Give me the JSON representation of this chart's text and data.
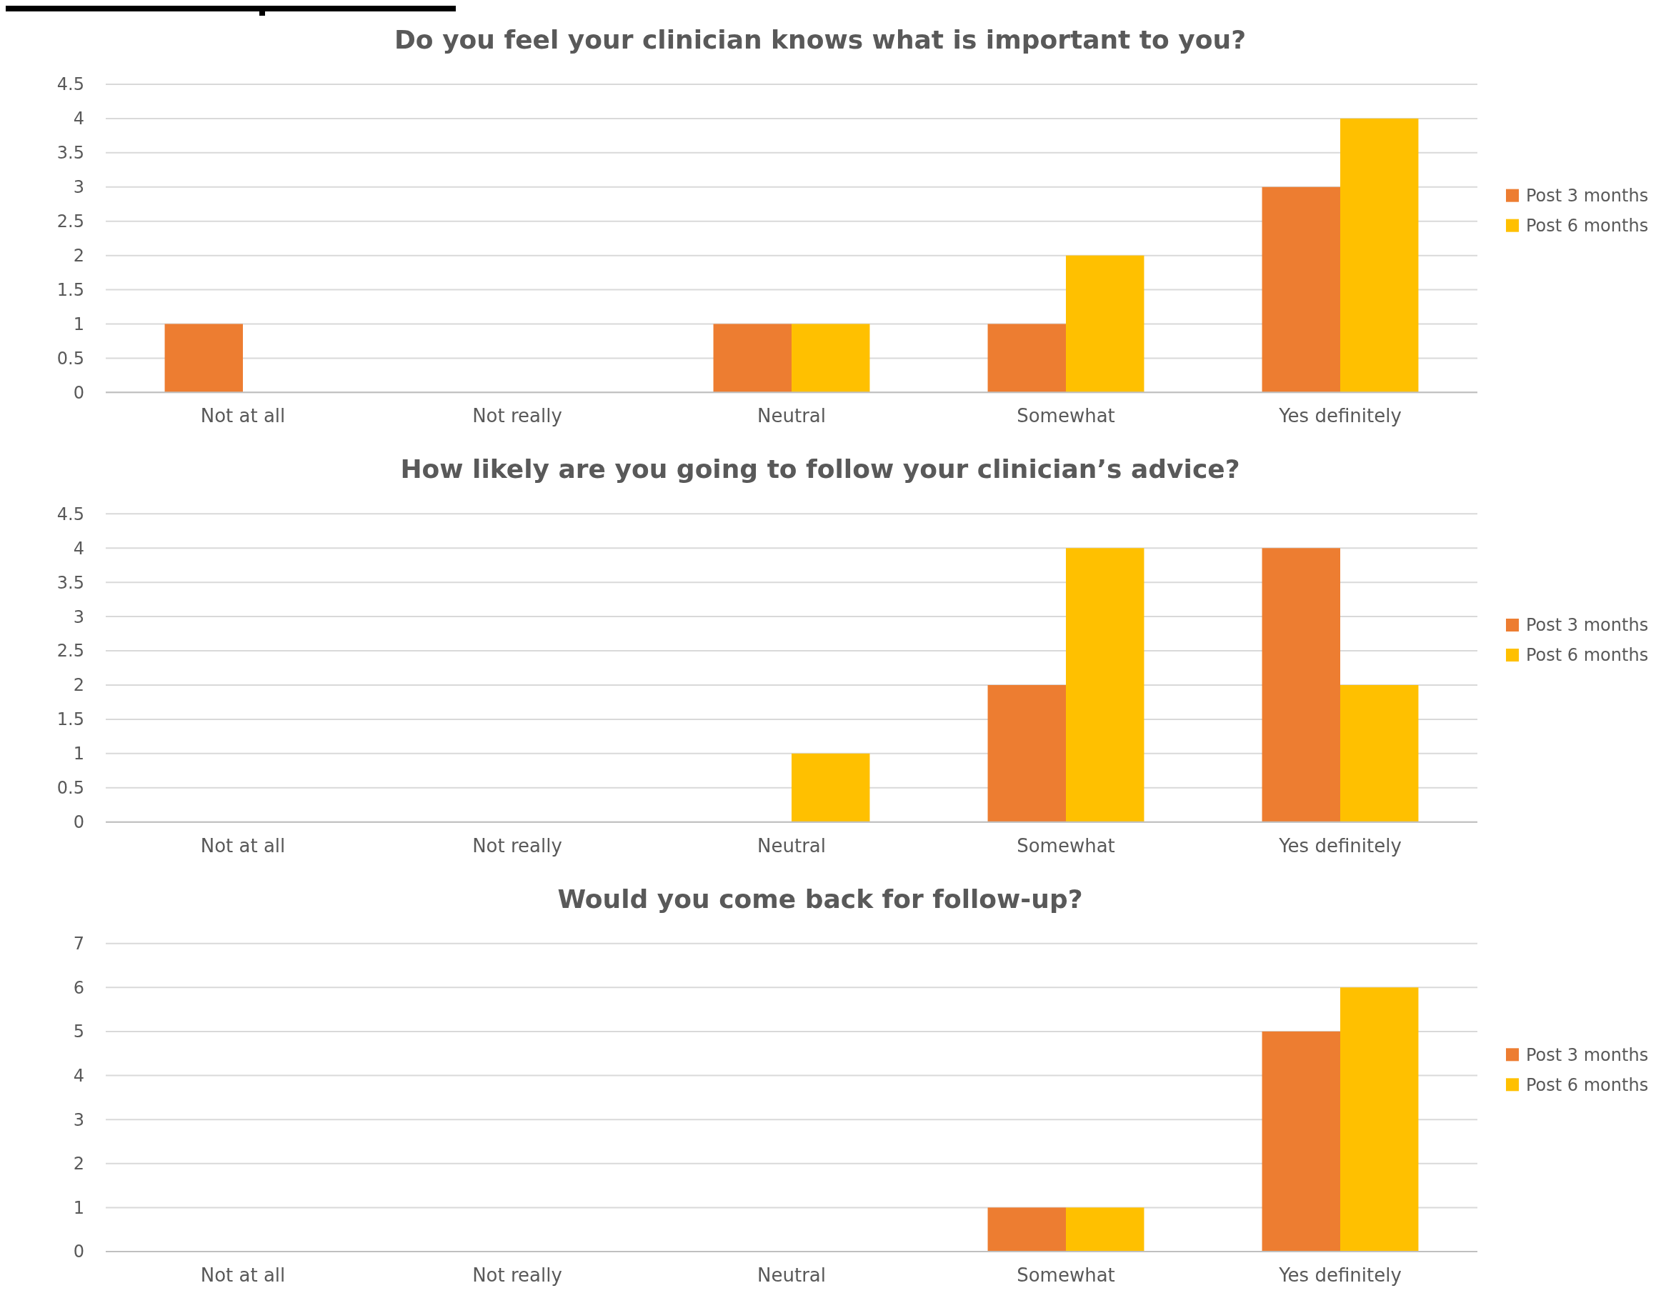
{
  "chart_data": [
    {
      "type": "bar",
      "title": "Do you feel your clinician knows what is important to you?",
      "categories": [
        "Not at all",
        "Not really",
        "Neutral",
        "Somewhat",
        "Yes definitely"
      ],
      "series": [
        {
          "name": "Post 3 months",
          "color": "#ed7d31",
          "values": [
            1,
            0,
            1,
            1,
            3
          ]
        },
        {
          "name": "Post 6 months",
          "color": "#ffc000",
          "values": [
            0,
            0,
            1,
            2,
            4
          ]
        }
      ],
      "ylim": [
        0,
        4.5
      ],
      "yticks": [
        0,
        0.5,
        1,
        1.5,
        2,
        2.5,
        3,
        3.5,
        4,
        4.5
      ],
      "grid": "y",
      "legend": "right"
    },
    {
      "type": "bar",
      "title": "How likely are you going to follow your clinician’s advice?",
      "categories": [
        "Not at all",
        "Not really",
        "Neutral",
        "Somewhat",
        "Yes definitely"
      ],
      "series": [
        {
          "name": "Post 3 months",
          "color": "#ed7d31",
          "values": [
            0,
            0,
            0,
            2,
            4
          ]
        },
        {
          "name": "Post 6 months",
          "color": "#ffc000",
          "values": [
            0,
            0,
            1,
            4,
            2
          ]
        }
      ],
      "ylim": [
        0,
        4.5
      ],
      "yticks": [
        0,
        0.5,
        1,
        1.5,
        2,
        2.5,
        3,
        3.5,
        4,
        4.5
      ],
      "grid": "y",
      "legend": "right"
    },
    {
      "type": "bar",
      "title": "Would you come back for follow-up?",
      "categories": [
        "Not at all",
        "Not really",
        "Neutral",
        "Somewhat",
        "Yes definitely"
      ],
      "series": [
        {
          "name": "Post 3 months",
          "color": "#ed7d31",
          "values": [
            0,
            0,
            0,
            1,
            5
          ]
        },
        {
          "name": "Post 6 months",
          "color": "#ffc000",
          "values": [
            0,
            0,
            0,
            1,
            6
          ]
        }
      ],
      "ylim": [
        0,
        7
      ],
      "yticks": [
        0,
        1,
        2,
        3,
        4,
        5,
        6,
        7
      ],
      "grid": "y",
      "legend": "right"
    }
  ]
}
